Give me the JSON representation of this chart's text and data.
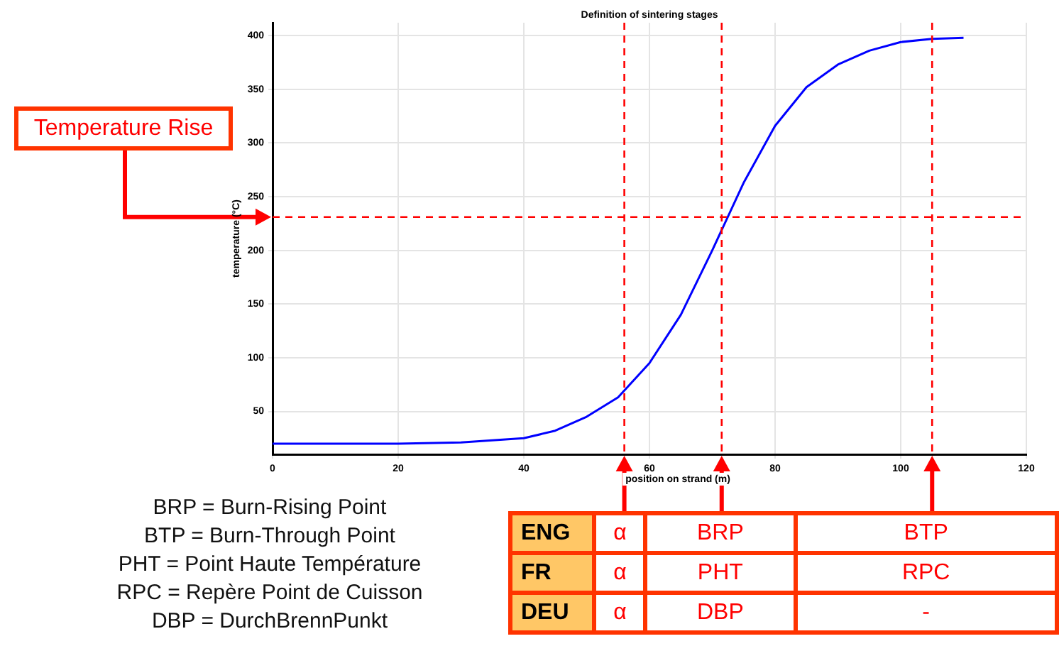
{
  "chart_data": {
    "type": "line",
    "title": "Definition of sintering stages",
    "xlabel": "position on strand (m)",
    "ylabel": "temperature (°C)",
    "x": [
      0,
      10,
      20,
      30,
      35,
      40,
      45,
      50,
      55,
      60,
      65,
      70,
      75,
      80,
      85,
      90,
      95,
      100,
      105,
      110
    ],
    "series": [
      {
        "color": "#0000ff",
        "values": [
          20,
          20,
          20,
          21,
          23,
          25,
          32,
          45,
          63,
          95,
          140,
          200,
          263,
          316,
          352,
          373,
          386,
          394,
          397,
          398
        ]
      }
    ],
    "xlim": [
      0,
      120
    ],
    "xticks": [
      0,
      20,
      40,
      60,
      80,
      100,
      120
    ],
    "ylim": [
      10,
      412
    ],
    "yticks": [
      50,
      100,
      150,
      200,
      250,
      300,
      350,
      400
    ],
    "grid": true,
    "legend": false,
    "marker": "none",
    "line_style": "solid",
    "ref_lines": [
      {
        "axis": "x",
        "value": 56,
        "color": "#ff0000",
        "line_style": "dashed"
      },
      {
        "axis": "x",
        "value": 71.5,
        "color": "#ff0000",
        "line_style": "dashed"
      },
      {
        "axis": "x",
        "value": 105,
        "color": "#ff0000",
        "line_style": "dashed"
      },
      {
        "axis": "y",
        "value": 231,
        "label": "Temperature Rise",
        "color": "#ff0000",
        "line_style": "dashed"
      }
    ],
    "annotations": [
      "BRP = Burn-Rising Point",
      "BTP = Burn-Through Point",
      "PHT = Point Haute Température",
      "RPC = Repère Point de Cuisson",
      "DBP = DurchBrennPunkt",
      "ENG",
      "α",
      "BRP",
      "BTP",
      "FR",
      "α",
      "PHT",
      "RPC",
      "DEU",
      "α",
      "DBP",
      "-"
    ]
  }
}
